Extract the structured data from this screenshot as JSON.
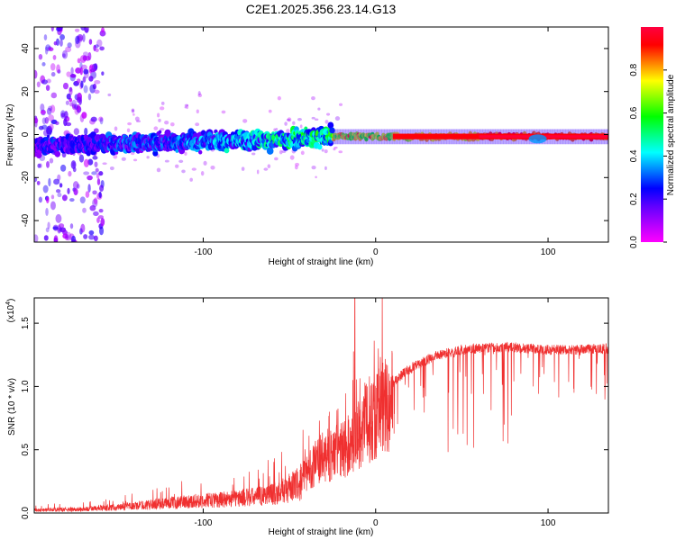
{
  "title": "C2E1.2025.356.23.14.G13",
  "spectrogram": {
    "type": "heatmap",
    "xlabel": "Height of straight line (km)",
    "ylabel": "Frequency (Hz)",
    "xlim": [
      -198,
      135
    ],
    "ylim": [
      -50,
      50
    ],
    "xticks": [
      -100,
      0,
      100
    ],
    "yticks": [
      -40,
      -20,
      0,
      20,
      40
    ],
    "colorbar": {
      "label": "Normalized spectral amplitude",
      "range": [
        0,
        1
      ],
      "ticks": [
        "0.0",
        "0.2",
        "0.4",
        "0.6",
        "0.8"
      ],
      "colors": [
        "#ff00ff",
        "#b000ff",
        "#6000ff",
        "#0000ff",
        "#0080ff",
        "#00ffff",
        "#00ff80",
        "#00ff00",
        "#80ff00",
        "#ffff00",
        "#ff8000",
        "#ff0000",
        "#ff0040"
      ]
    }
  },
  "snr": {
    "type": "line",
    "xlabel": "Height of straight line (km)",
    "ylabel": "SNR (10 * v/v)",
    "scale_label": "(x10",
    "scale_exponent": "4",
    "scale_suffix": ")",
    "xlim": [
      -198,
      135
    ],
    "ylim": [
      0,
      1.7
    ],
    "xticks": [
      -100,
      0,
      100
    ],
    "yticks": [
      0.0,
      0.5,
      1.0,
      1.5
    ],
    "color": "#f03030",
    "envelope": {
      "x": [
        -198,
        -170,
        -150,
        -130,
        -110,
        -90,
        -70,
        -55,
        -45,
        -40,
        -35,
        -30,
        -25,
        -20,
        -15,
        -10,
        -5,
        0,
        5,
        10,
        15,
        20,
        25,
        30,
        35,
        40,
        45,
        50,
        60,
        70,
        80,
        90,
        100,
        110,
        120,
        135
      ],
      "y": [
        0.03,
        0.04,
        0.06,
        0.09,
        0.12,
        0.14,
        0.17,
        0.22,
        0.3,
        0.38,
        0.46,
        0.52,
        0.55,
        0.58,
        0.63,
        0.75,
        0.85,
        0.92,
        1.0,
        1.07,
        1.13,
        1.18,
        1.22,
        1.25,
        1.28,
        1.3,
        1.31,
        1.33,
        1.34,
        1.35,
        1.35,
        1.34,
        1.33,
        1.33,
        1.33,
        1.34
      ]
    },
    "spike": {
      "x": -12,
      "y": 1.7
    }
  }
}
